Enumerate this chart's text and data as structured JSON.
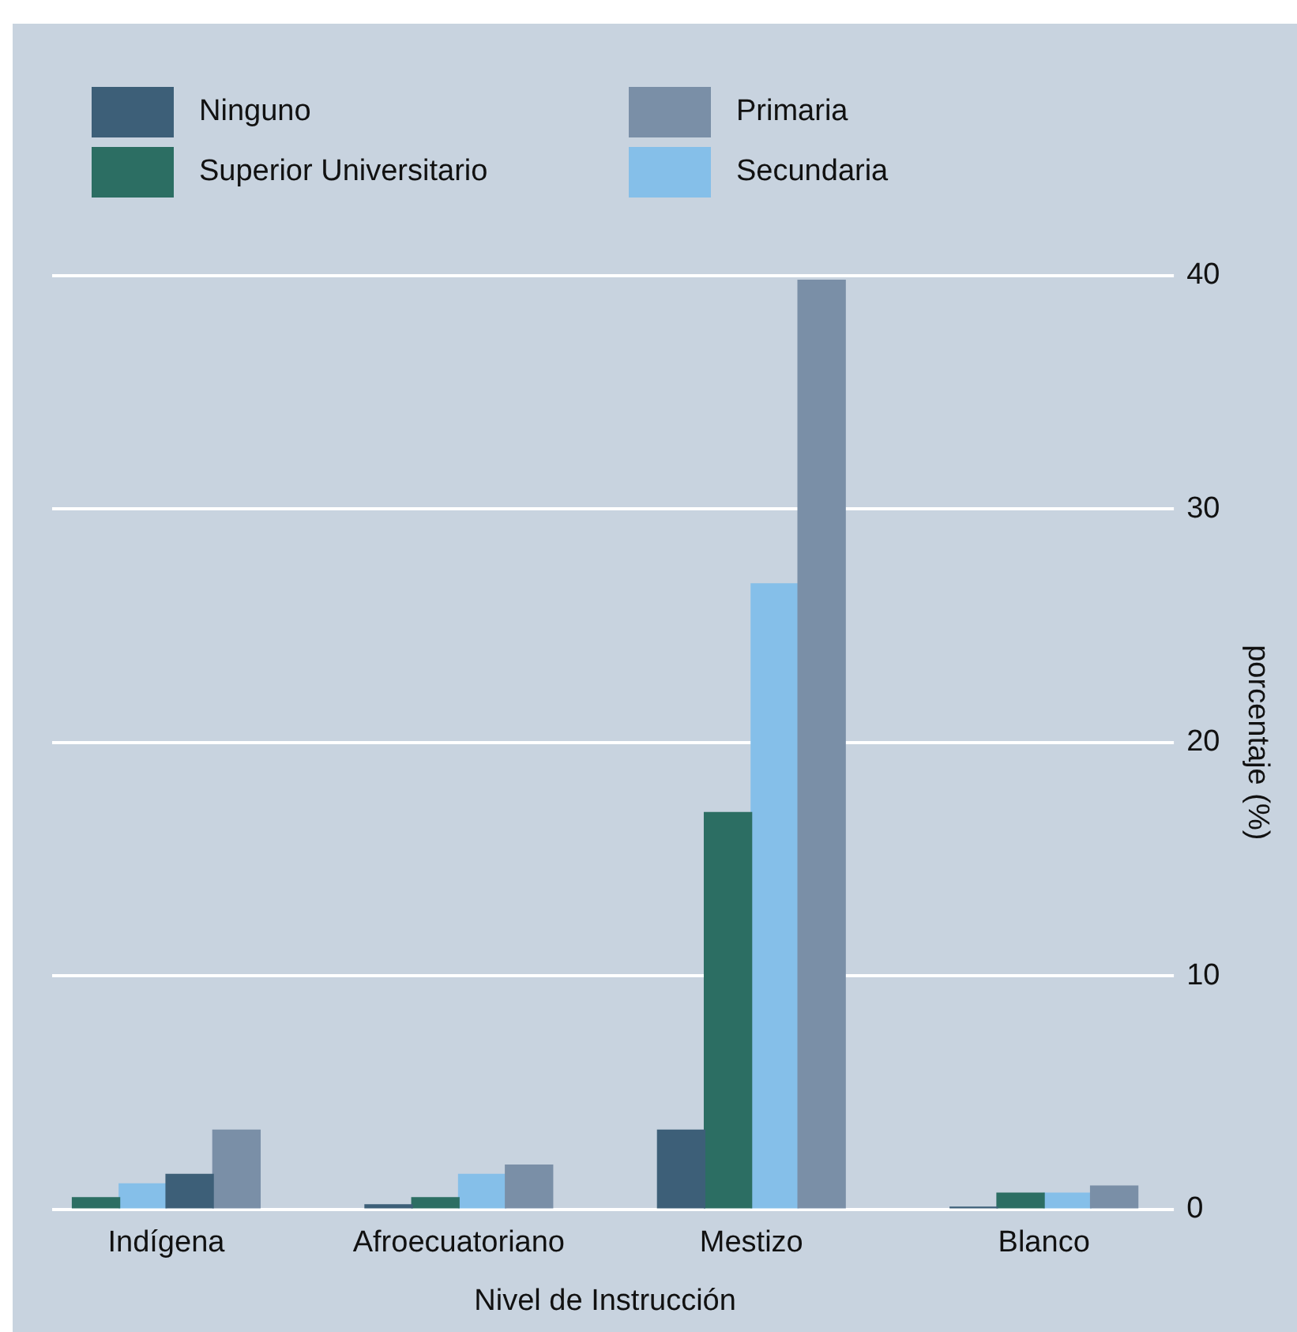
{
  "chart_data": {
    "type": "bar",
    "xlabel": "Nivel de Instrucción",
    "ylabel": "porcentaje (%)",
    "categories": [
      "Indígena",
      "Afroecuatoriano",
      "Mestizo",
      "Blanco"
    ],
    "series": [
      {
        "name": "Ninguno",
        "color": "#3d5f78",
        "values": [
          1.5,
          0.2,
          3.4,
          0.1
        ]
      },
      {
        "name": "Primaria",
        "color": "#7a8fa7",
        "values": [
          3.4,
          1.9,
          39.8,
          1.0
        ]
      },
      {
        "name": "Superior Universitario",
        "color": "#2c6e63",
        "values": [
          0.5,
          0.5,
          17.0,
          0.7
        ]
      },
      {
        "name": "Secundaria",
        "color": "#85bfe9",
        "values": [
          1.1,
          1.5,
          26.8,
          0.7
        ]
      }
    ],
    "ylim": [
      0,
      40
    ],
    "yticks": [
      0,
      10,
      20,
      30,
      40
    ],
    "grid": "y",
    "legend": "top"
  }
}
